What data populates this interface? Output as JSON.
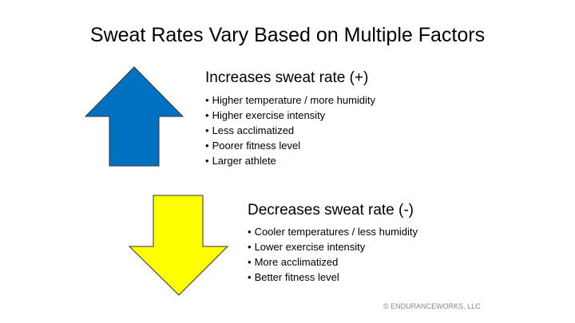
{
  "title": "Sweat Rates Vary Based on Multiple Factors",
  "increase": {
    "heading": "Increases sweat rate (+)",
    "items": [
      "Higher temperature / more humidity",
      "Higher exercise intensity",
      "Less acclimatized",
      "Poorer fitness level",
      "Larger athlete"
    ],
    "color": "#0070C0"
  },
  "decrease": {
    "heading": "Decreases sweat rate (-)",
    "items": [
      "Cooler temperatures / less humidity",
      "Lower exercise intensity",
      "More acclimatized",
      "Better fitness level"
    ],
    "color": "#FFFF00"
  },
  "footer": "© ENDURANCEWORKS, LLC"
}
